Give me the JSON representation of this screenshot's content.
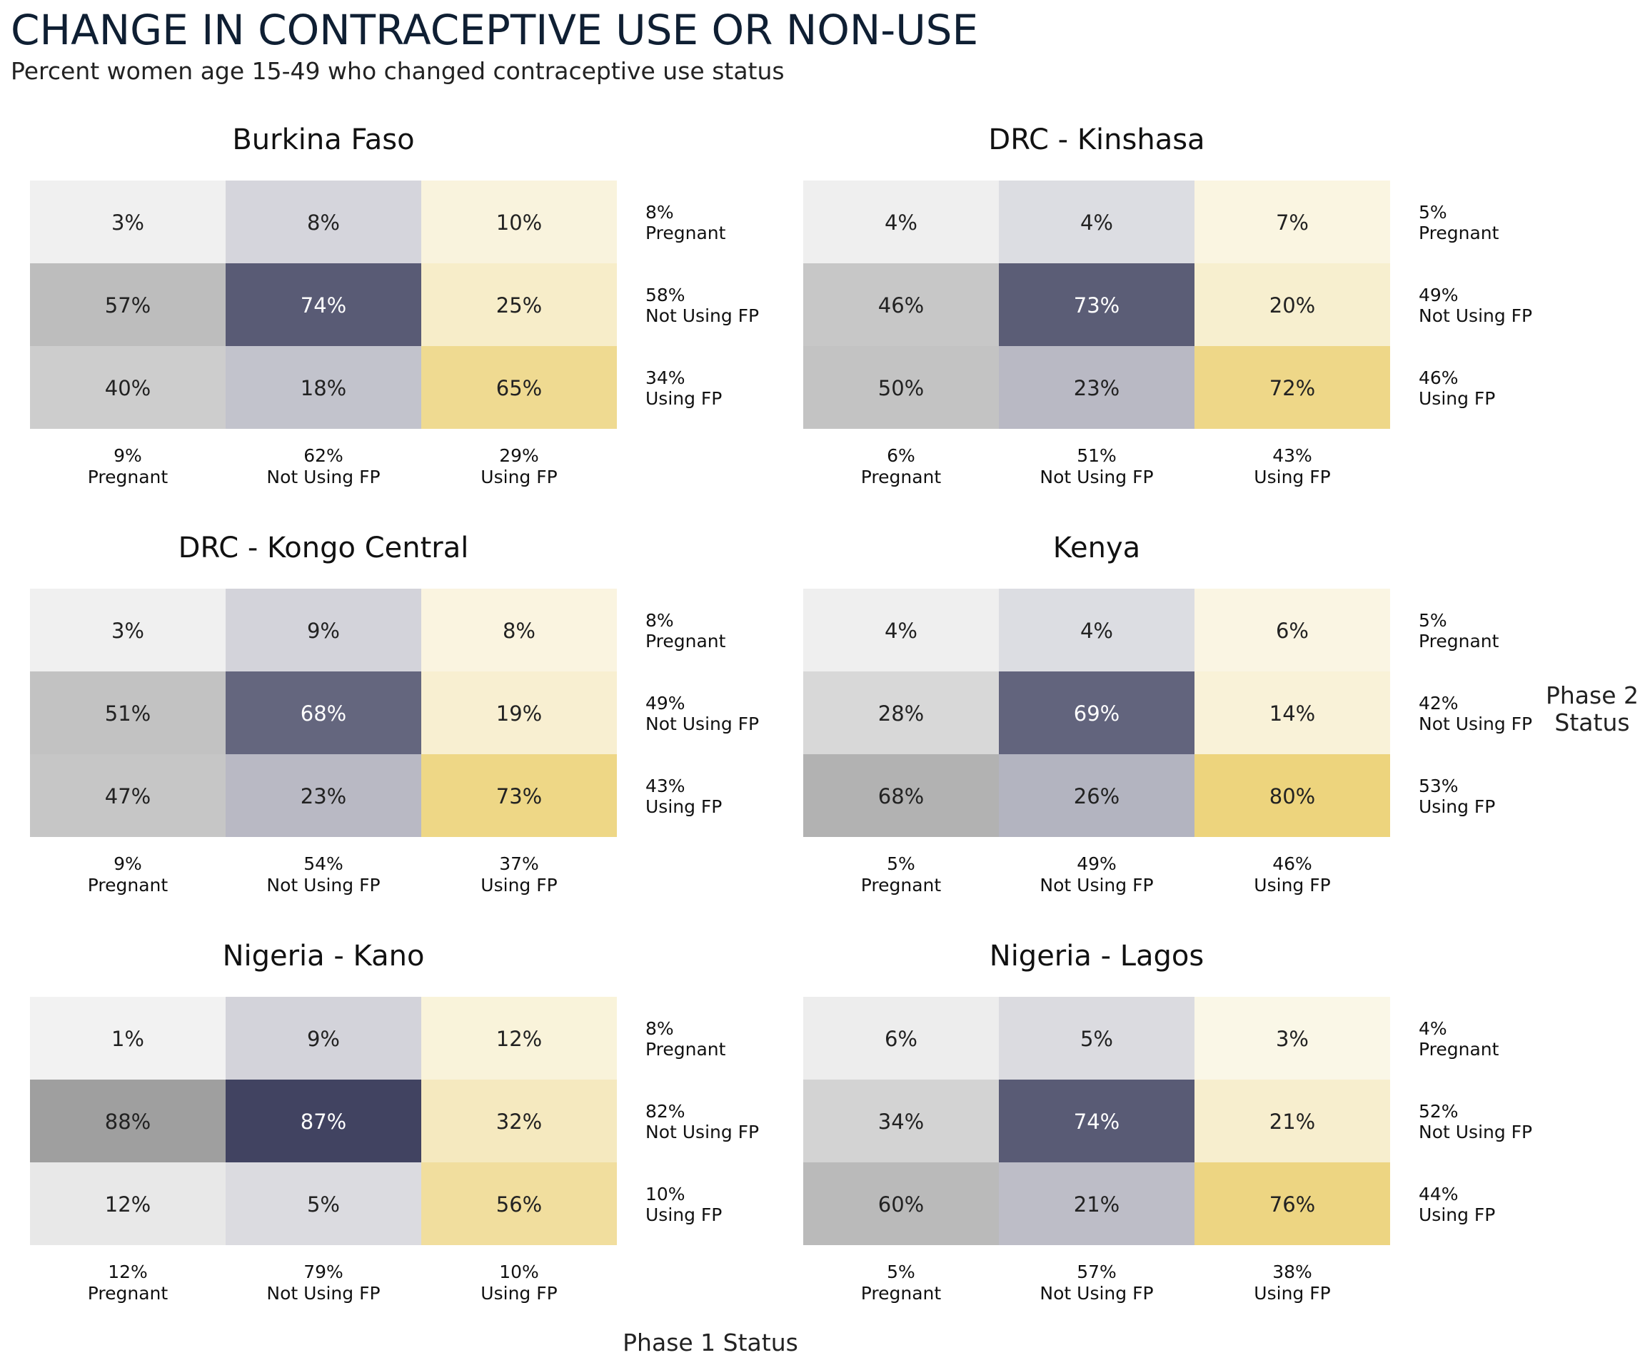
{
  "title": "CHANGE IN CONTRACEPTIVE USE OR NON-USE",
  "subtitle": "Percent women age 15-49 who changed contraceptive use status",
  "x_axis_title": "Phase 1 Status",
  "y_axis_title_line1": "Phase 2",
  "y_axis_title_line2": "Status",
  "colors": {
    "pregnant_low": "#f3f3f3",
    "pregnant_high": "#9d9d9d",
    "notusing_low": "#e4e4e8",
    "notusing_high": "#3b3d5c",
    "using_low": "#fbf8eb",
    "using_high": "#ebcf6f",
    "text_dark": "#222222",
    "text_light": "#ffffff"
  },
  "chart_data": [
    {
      "type": "heatmap",
      "title": "Burkina Faso",
      "columns": [
        "Pregnant",
        "Not Using FP",
        "Using FP"
      ],
      "rows": [
        "Pregnant",
        "Not Using FP",
        "Using FP"
      ],
      "values": [
        [
          3,
          8,
          10
        ],
        [
          57,
          74,
          25
        ],
        [
          40,
          18,
          65
        ]
      ],
      "col_totals": [
        9,
        62,
        29
      ],
      "row_totals": [
        8,
        58,
        34
      ]
    },
    {
      "type": "heatmap",
      "title": "DRC - Kinshasa",
      "columns": [
        "Pregnant",
        "Not Using FP",
        "Using FP"
      ],
      "rows": [
        "Pregnant",
        "Not Using FP",
        "Using FP"
      ],
      "values": [
        [
          4,
          4,
          7
        ],
        [
          46,
          73,
          20
        ],
        [
          50,
          23,
          72
        ]
      ],
      "col_totals": [
        6,
        51,
        43
      ],
      "row_totals": [
        5,
        49,
        46
      ]
    },
    {
      "type": "heatmap",
      "title": "DRC - Kongo Central",
      "columns": [
        "Pregnant",
        "Not Using FP",
        "Using FP"
      ],
      "rows": [
        "Pregnant",
        "Not Using FP",
        "Using FP"
      ],
      "values": [
        [
          3,
          9,
          8
        ],
        [
          51,
          68,
          19
        ],
        [
          47,
          23,
          73
        ]
      ],
      "col_totals": [
        9,
        54,
        37
      ],
      "row_totals": [
        8,
        49,
        43
      ]
    },
    {
      "type": "heatmap",
      "title": "Kenya",
      "columns": [
        "Pregnant",
        "Not Using FP",
        "Using FP"
      ],
      "rows": [
        "Pregnant",
        "Not Using FP",
        "Using FP"
      ],
      "values": [
        [
          4,
          4,
          6
        ],
        [
          28,
          69,
          14
        ],
        [
          68,
          26,
          80
        ]
      ],
      "col_totals": [
        5,
        49,
        46
      ],
      "row_totals": [
        5,
        42,
        53
      ]
    },
    {
      "type": "heatmap",
      "title": "Nigeria - Kano",
      "columns": [
        "Pregnant",
        "Not Using FP",
        "Using FP"
      ],
      "rows": [
        "Pregnant",
        "Not Using FP",
        "Using FP"
      ],
      "values": [
        [
          1,
          9,
          12
        ],
        [
          88,
          87,
          32
        ],
        [
          12,
          5,
          56
        ]
      ],
      "col_totals": [
        12,
        79,
        10
      ],
      "row_totals": [
        8,
        82,
        10
      ]
    },
    {
      "type": "heatmap",
      "title": "Nigeria - Lagos",
      "columns": [
        "Pregnant",
        "Not Using FP",
        "Using FP"
      ],
      "rows": [
        "Pregnant",
        "Not Using FP",
        "Using FP"
      ],
      "values": [
        [
          6,
          5,
          3
        ],
        [
          34,
          74,
          21
        ],
        [
          60,
          21,
          76
        ]
      ],
      "col_totals": [
        5,
        57,
        38
      ],
      "row_totals": [
        4,
        52,
        44
      ]
    }
  ]
}
